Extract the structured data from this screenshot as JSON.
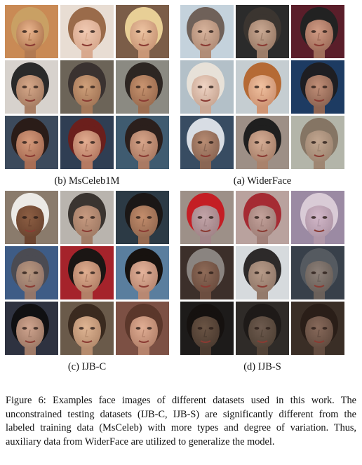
{
  "panels": {
    "msceleb": {
      "label": "(b) MsCeleb1M",
      "faces": [
        {
          "bg": "#c98a55",
          "skin": "#e9b48e",
          "hair": "#c9a064",
          "shade": "#b27a52"
        },
        {
          "bg": "#e8ddd3",
          "skin": "#f0c9b2",
          "hair": "#9a6b4a",
          "shade": "#d8a98e"
        },
        {
          "bg": "#7b5d48",
          "skin": "#edc3a1",
          "hair": "#e8cf96",
          "shade": "#c99777"
        },
        {
          "bg": "#d7d2cd",
          "skin": "#d6a889",
          "hair": "#2a2a2a",
          "shade": "#a87e64"
        },
        {
          "bg": "#6c6458",
          "skin": "#cfa07a",
          "hair": "#3a3230",
          "shade": "#a47758"
        },
        {
          "bg": "#8b8a82",
          "skin": "#c99470",
          "hair": "#2d2622",
          "shade": "#9c6d50"
        },
        {
          "bg": "#3c4a5c",
          "skin": "#d59a7b",
          "hair": "#2a1c18",
          "shade": "#a86e55"
        },
        {
          "bg": "#2f3e53",
          "skin": "#e3ad91",
          "hair": "#6b1f1c",
          "shade": "#b57a62"
        },
        {
          "bg": "#3f5b70",
          "skin": "#d7a58a",
          "hair": "#2b1f1c",
          "shade": "#aa7a63"
        }
      ]
    },
    "widerface": {
      "label": "(a) WiderFace",
      "faces": [
        {
          "bg": "#c4d2dc",
          "skin": "#d7b39c",
          "hair": "#6f6159",
          "shade": "#b18d77"
        },
        {
          "bg": "#2b2b2b",
          "skin": "#c9a892",
          "hair": "#3b3530",
          "shade": "#9c7d69"
        },
        {
          "bg": "#5a1e2a",
          "skin": "#d09b84",
          "hair": "#222222",
          "shade": "#a06e5b"
        },
        {
          "bg": "#b3c0c8",
          "skin": "#efd4c4",
          "hair": "#e7e1d8",
          "shade": "#caa895"
        },
        {
          "bg": "#c5cdd1",
          "skin": "#f0c1a0",
          "hair": "#b56a35",
          "shade": "#cf9574"
        },
        {
          "bg": "#1d3b62",
          "skin": "#c18f78",
          "hair": "#1e1e22",
          "shade": "#8e6553"
        },
        {
          "bg": "#384c62",
          "skin": "#b88c73",
          "hair": "#d8dde4",
          "shade": "#8a6654"
        },
        {
          "bg": "#9d8f86",
          "skin": "#d4ac94",
          "hair": "#1f1f1f",
          "shade": "#a9826c"
        },
        {
          "bg": "#b3b5a9",
          "skin": "#c2a690",
          "hair": "#857564",
          "shade": "#9e8672"
        }
      ]
    },
    "ijbc": {
      "label": "(c) IJB-C",
      "faces": [
        {
          "bg": "#8a7b6c",
          "skin": "#8c5e43",
          "hair": "#eceae6",
          "shade": "#6c4530"
        },
        {
          "bg": "#b9b4ae",
          "skin": "#c79a80",
          "hair": "#3a3430",
          "shade": "#a27c66"
        },
        {
          "bg": "#2c3a45",
          "skin": "#c38d6c",
          "hair": "#1b1716",
          "shade": "#966a51"
        },
        {
          "bg": "#3e5c86",
          "skin": "#b8977f",
          "hair": "#4b4b52",
          "shade": "#93766a"
        },
        {
          "bg": "#a5232b",
          "skin": "#e0ae90",
          "hair": "#1b1614",
          "shade": "#b28067"
        },
        {
          "bg": "#5a7e9e",
          "skin": "#e4b39b",
          "hair": "#17120f",
          "shade": "#b88872"
        },
        {
          "bg": "#2e3240",
          "skin": "#cfa48e",
          "hair": "#101012",
          "shade": "#a07b68"
        },
        {
          "bg": "#6a5a4a",
          "skin": "#dfb593",
          "hair": "#3a2a1f",
          "shade": "#b68c6e"
        },
        {
          "bg": "#7c5044",
          "skin": "#e1ae94",
          "hair": "#5b372b",
          "shade": "#b6836c"
        }
      ]
    },
    "ijbs": {
      "label": "(d) IJB-S",
      "faces": [
        {
          "bg": "#9d9088",
          "skin": "#c2a4a8",
          "hair": "#c41e24",
          "shade": "#a28488"
        },
        {
          "bg": "#b9a29e",
          "skin": "#c3a29b",
          "hair": "#a52b33",
          "shade": "#a18079"
        },
        {
          "bg": "#9b8aa3",
          "skin": "#d2b7c8",
          "hair": "#d9cbd6",
          "shade": "#b097a8"
        },
        {
          "bg": "#3c2f2a",
          "skin": "#8f6b58",
          "hair": "#8a8480",
          "shade": "#6c4e40"
        },
        {
          "bg": "#d6dadd",
          "skin": "#b69a88",
          "hair": "#2d2a2a",
          "shade": "#937a6b"
        },
        {
          "bg": "#38404a",
          "skin": "#8d8078",
          "hair": "#555a60",
          "shade": "#6a605a"
        },
        {
          "bg": "#1d1b1a",
          "skin": "#6a5444",
          "hair": "#15110f",
          "shade": "#4d3c31"
        },
        {
          "bg": "#2f2b28",
          "skin": "#6d5a4e",
          "hair": "#1e1a18",
          "shade": "#524337"
        },
        {
          "bg": "#3a2e26",
          "skin": "#87695a",
          "hair": "#2a1e18",
          "shade": "#634c40"
        }
      ]
    }
  },
  "caption": "Figure 6: Examples face images of different datasets used in this work. The unconstrained testing datasets (IJB-C, IJB-S) are significantly different from the labeled training data (MsCeleb) with more types and degree of variation. Thus, auxiliary data from WiderFace are utilized to generalize the model."
}
